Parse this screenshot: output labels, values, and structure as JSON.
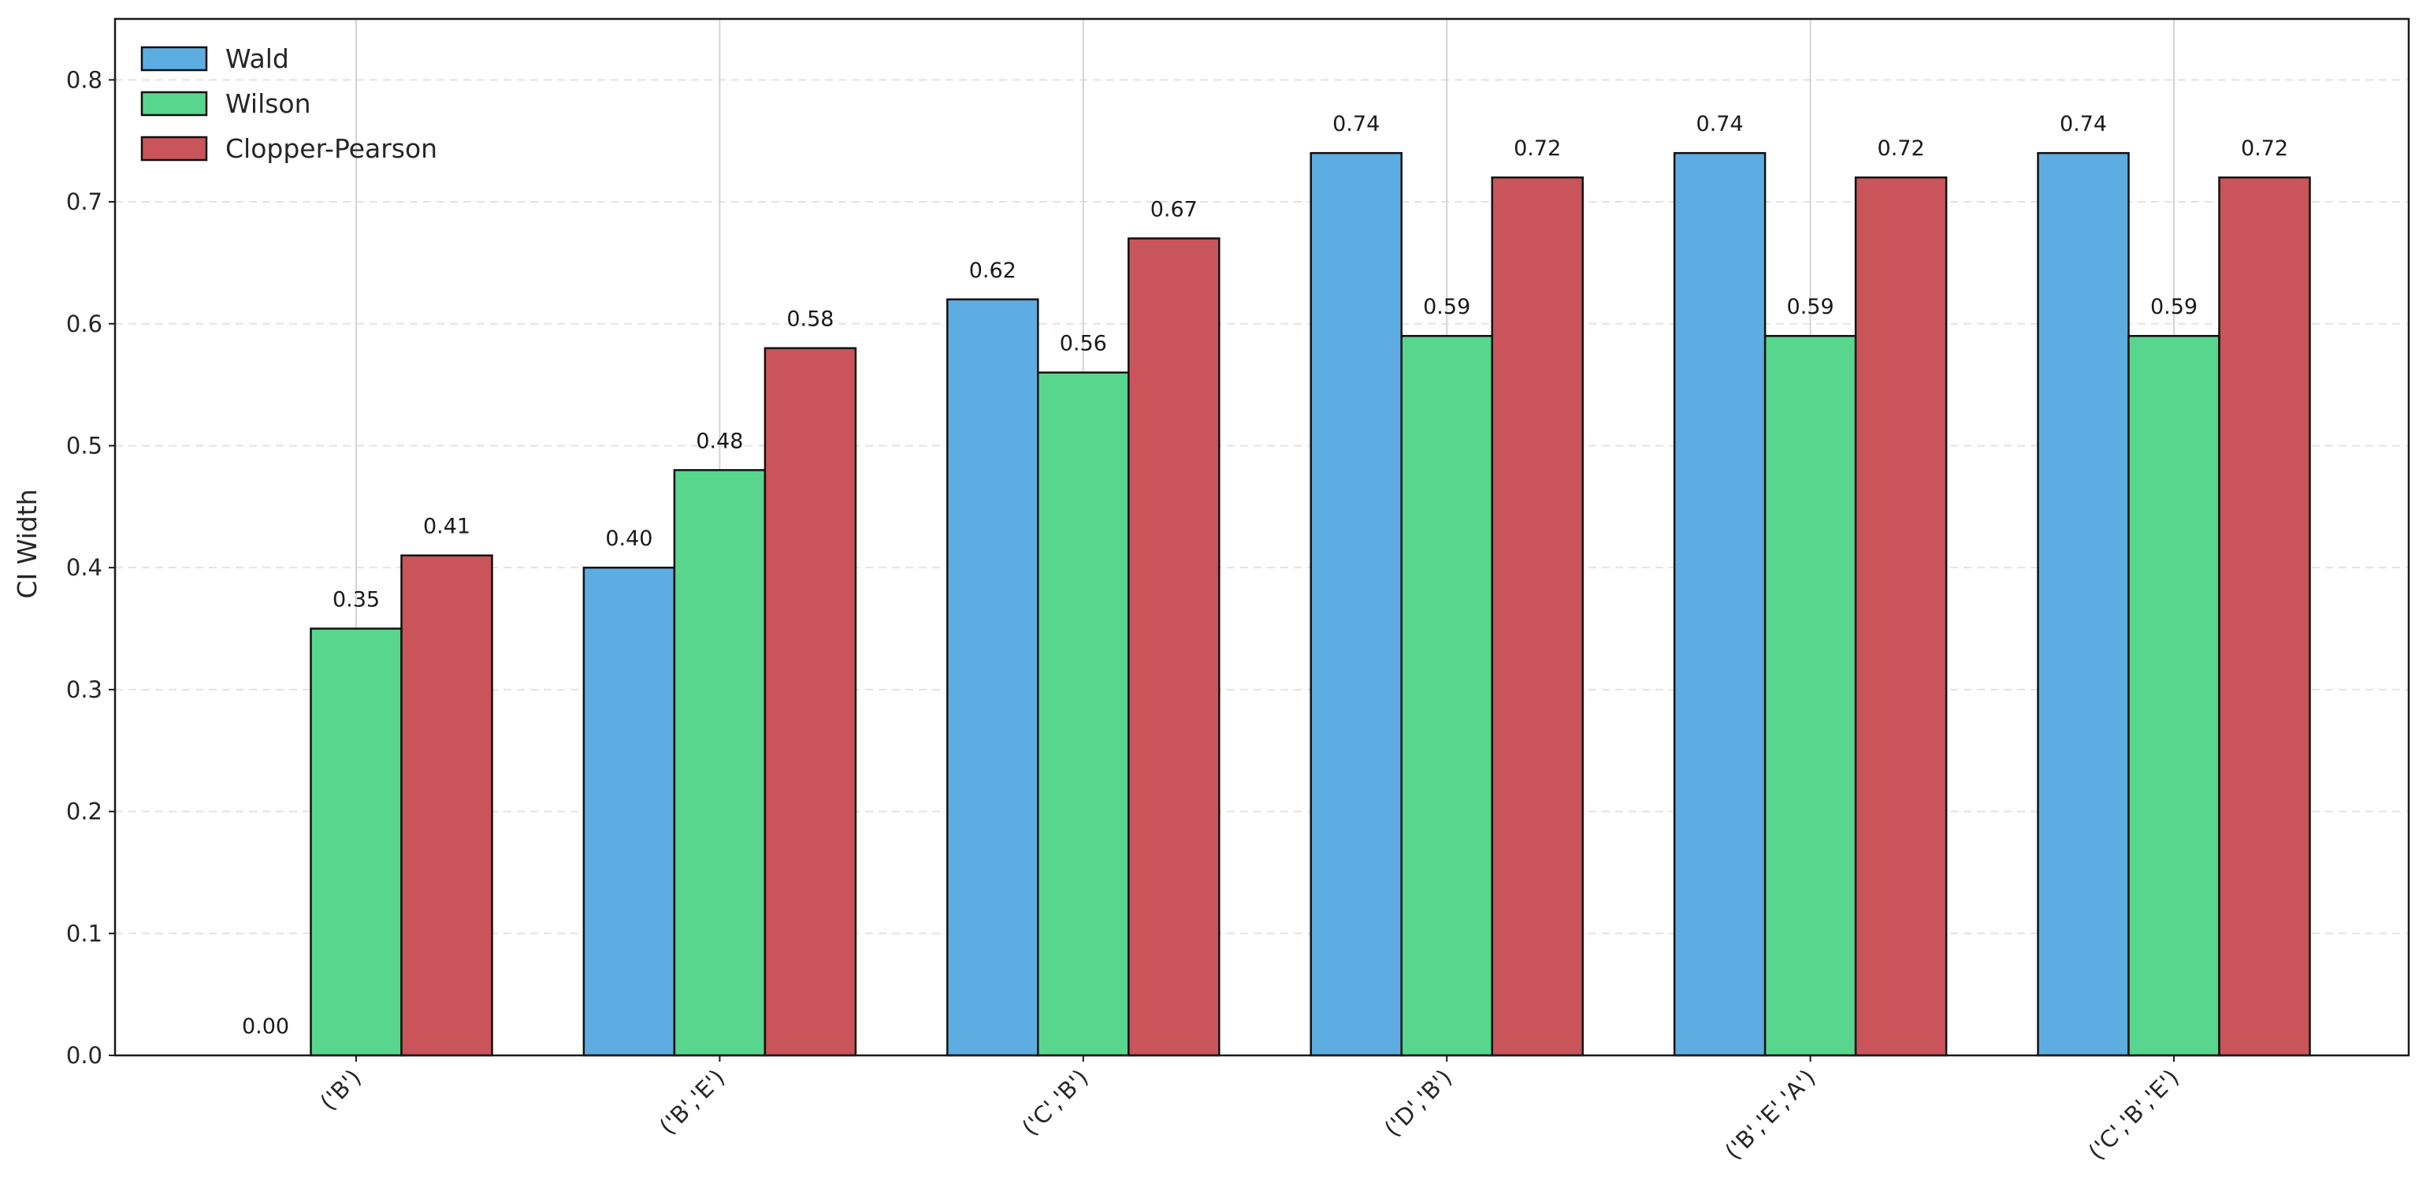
{
  "chart_data": {
    "type": "bar",
    "title": "",
    "xlabel": "",
    "ylabel": "CI Width",
    "ylim": [
      0,
      0.85
    ],
    "yticks": [
      "0.0",
      "0.1",
      "0.2",
      "0.3",
      "0.4",
      "0.5",
      "0.6",
      "0.7",
      "0.8"
    ],
    "categories": [
      "('B')",
      "('B','E')",
      "('C','B')",
      "('D','B')",
      "('B','E','A')",
      "('C','B','E')"
    ],
    "series": [
      {
        "name": "Wald",
        "color": "#5dade2",
        "values": [
          0.0,
          0.4,
          0.62,
          0.74,
          0.74,
          0.74
        ],
        "labels": [
          "0.00",
          "0.40",
          "0.62",
          "0.74",
          "0.74",
          "0.74"
        ]
      },
      {
        "name": "Wilson",
        "color": "#58d68d",
        "values": [
          0.35,
          0.48,
          0.56,
          0.59,
          0.59,
          0.59
        ],
        "labels": [
          "0.35",
          "0.48",
          "0.56",
          "0.59",
          "0.59",
          "0.59"
        ]
      },
      {
        "name": "Clopper-Pearson",
        "color": "#c9545a",
        "values": [
          0.41,
          0.58,
          0.67,
          0.72,
          0.72,
          0.72
        ],
        "labels": [
          "0.41",
          "0.58",
          "0.67",
          "0.72",
          "0.72",
          "0.72"
        ]
      }
    ],
    "legend_position": "top-left",
    "grid": {
      "y": "dashed",
      "x": "solid"
    }
  }
}
